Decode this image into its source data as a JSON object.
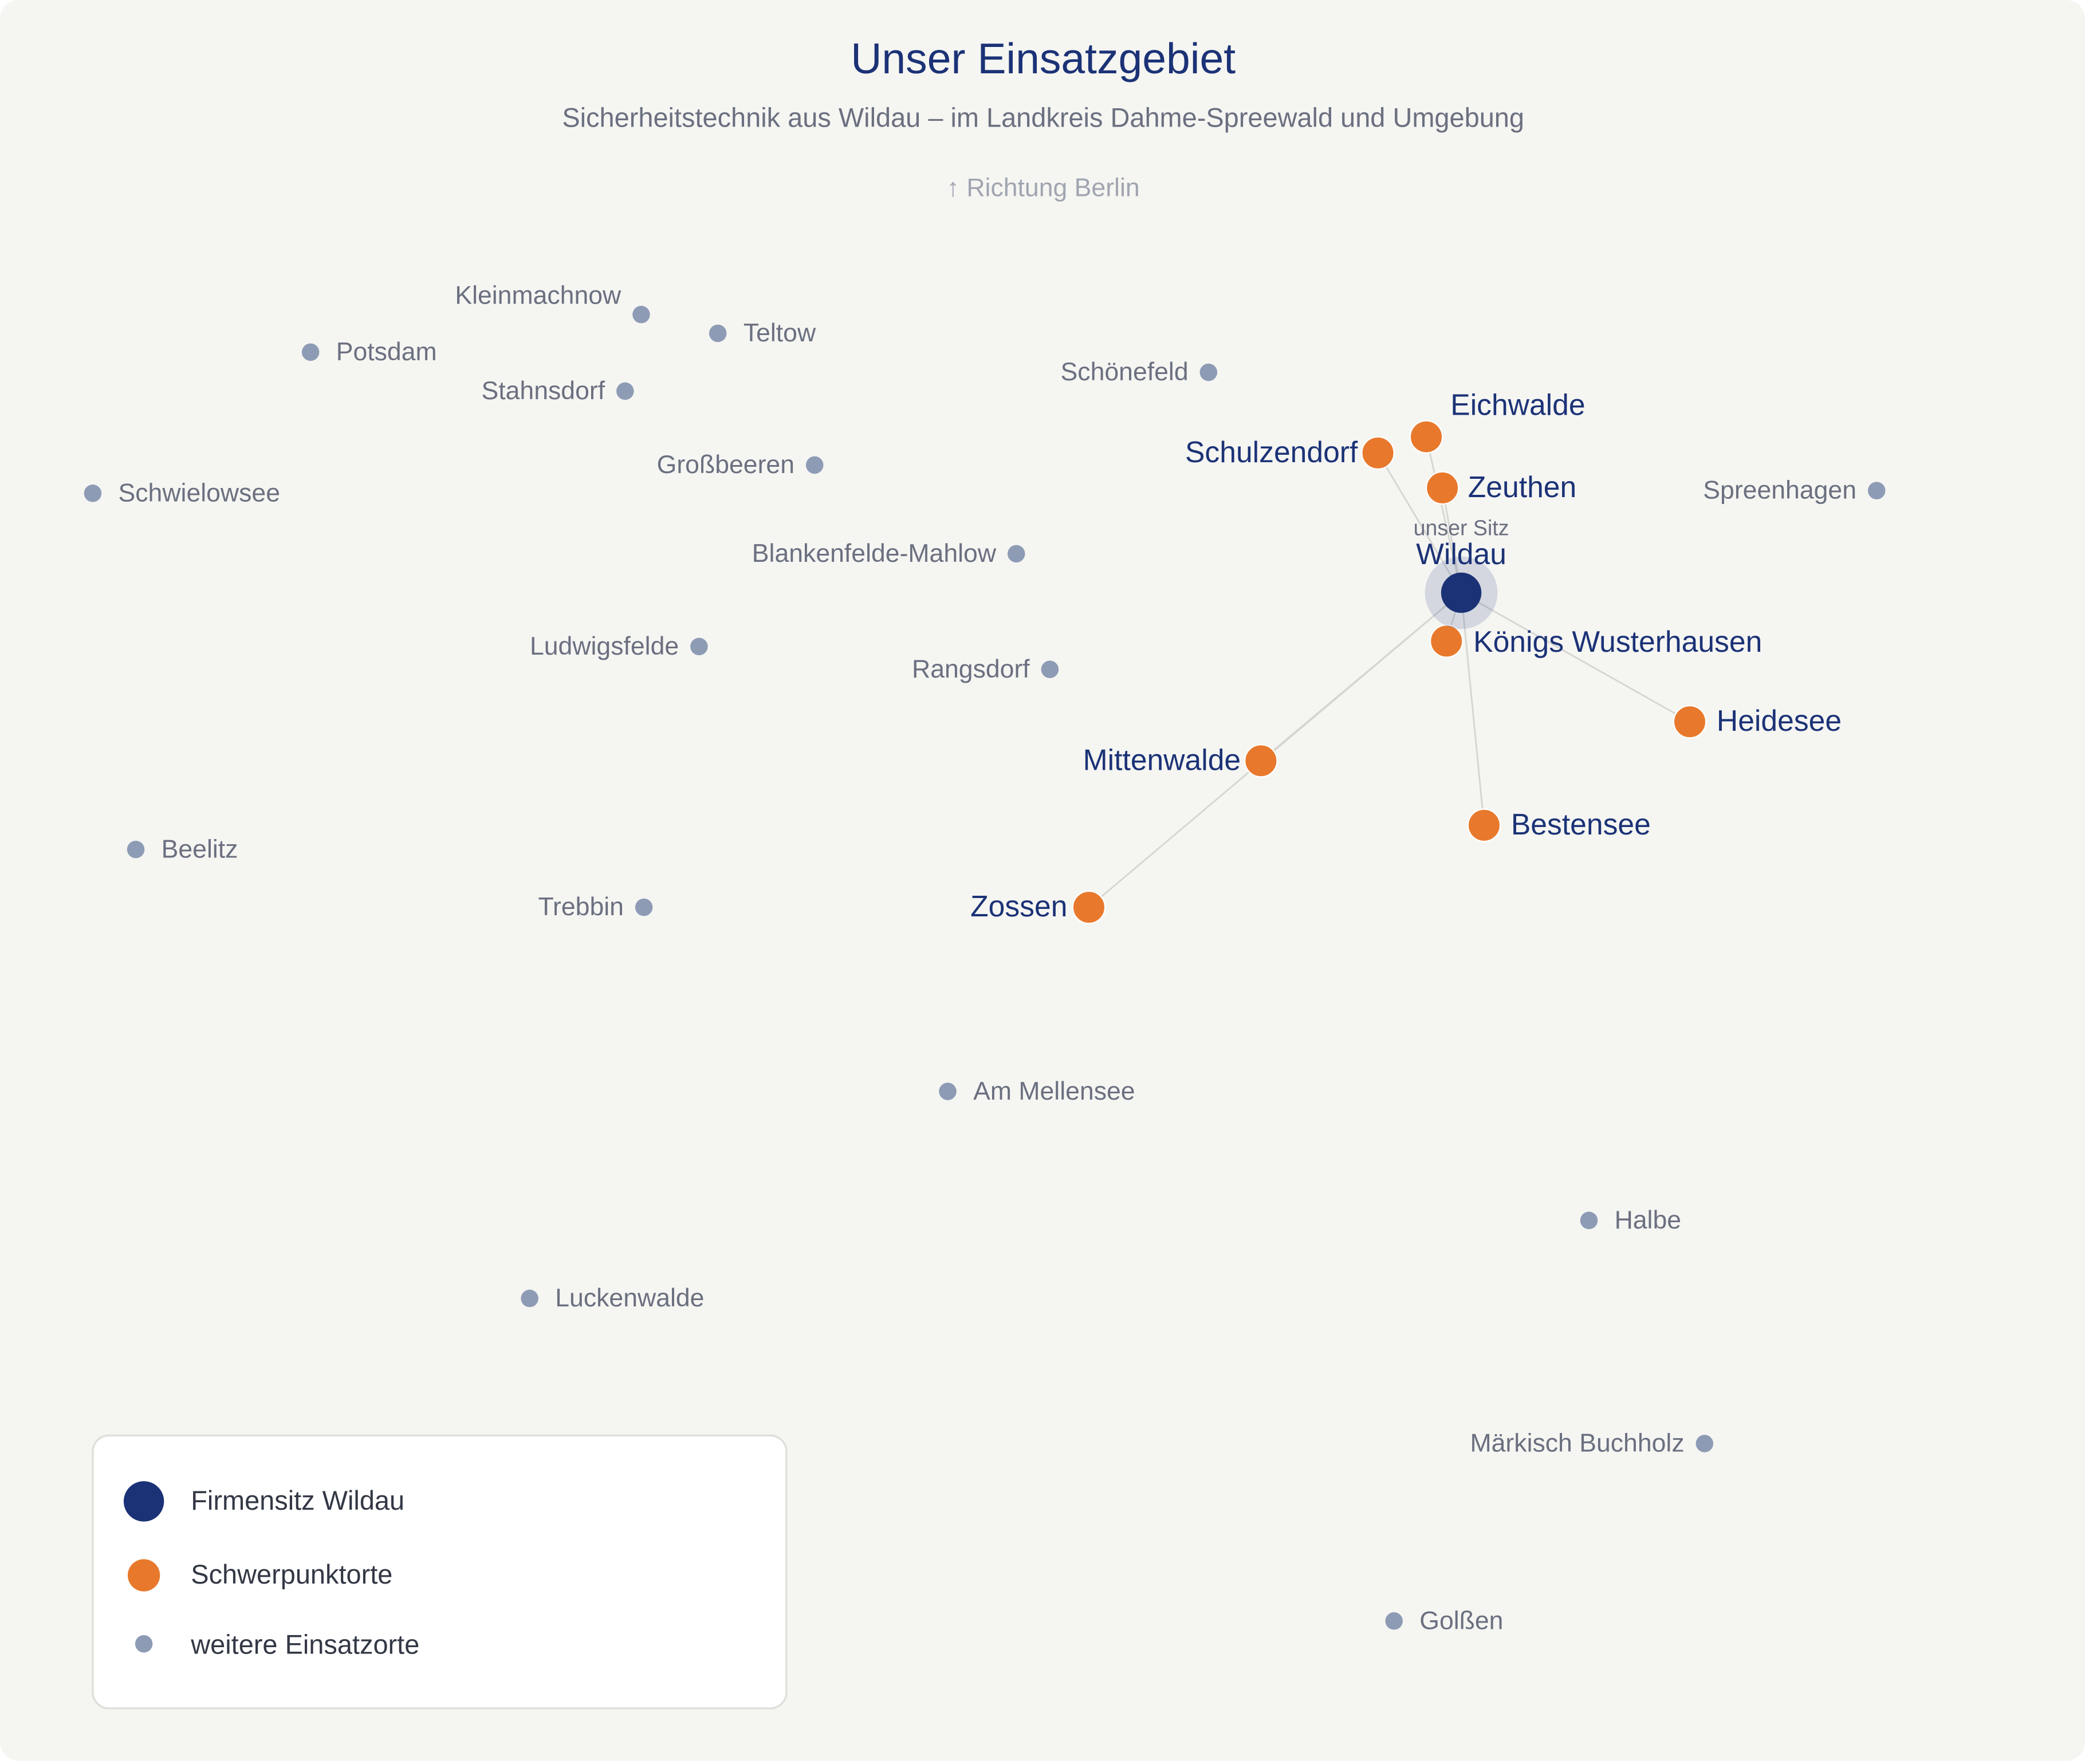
{
  "title": "Unser Einsatzgebiet",
  "subtitle": "Sicherheitstechnik aus Wildau – im Landkreis Dahme-Spreewald und Umgebung",
  "direction_label": "↑ Richtung Berlin",
  "headquarters": {
    "tag": "unser Sitz",
    "name": "Wildau"
  },
  "focus_places": [
    "Eichwalde",
    "Schulzendorf",
    "Zeuthen",
    "Königs Wusterhausen",
    "Heidesee",
    "Mittenwalde",
    "Bestensee",
    "Zossen"
  ],
  "other_places": [
    "Kleinmachnow",
    "Teltow",
    "Potsdam",
    "Stahnsdorf",
    "Schönefeld",
    "Großbeeren",
    "Schwielowsee",
    "Spreenhagen",
    "Blankenfelde-Mahlow",
    "Ludwigsfelde",
    "Rangsdorf",
    "Beelitz",
    "Trebbin",
    "Am Mellensee",
    "Halbe",
    "Luckenwalde",
    "Märkisch Buchholz",
    "Golßen"
  ],
  "legend": [
    "Firmensitz Wildau",
    "Schwerpunktorte",
    "weitere Einsatzorte"
  ]
}
